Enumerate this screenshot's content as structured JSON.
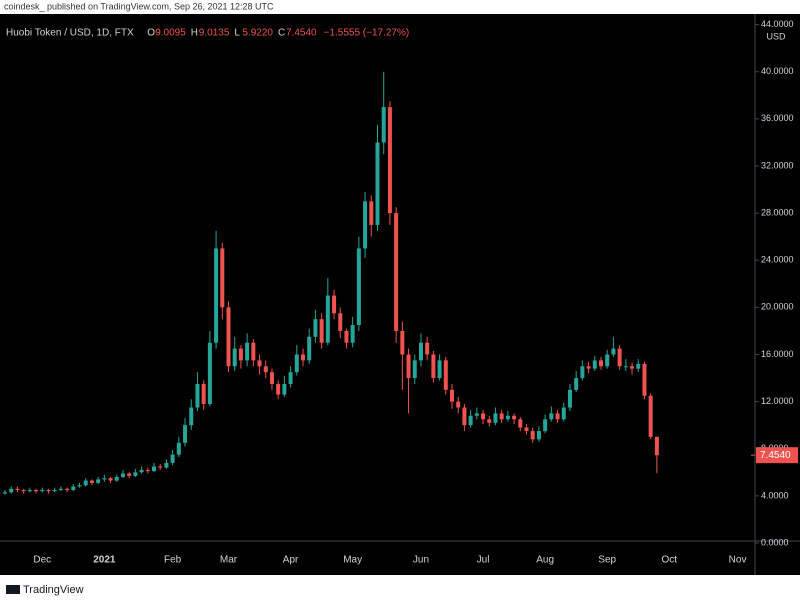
{
  "attribution": "coindesk_ published on TradingView.com, Sep 26, 2021 12:28 UTC",
  "footer": "TradingView",
  "chart_data": {
    "type": "candlestick",
    "symbol": "Huobi Token / USD, 1D, FTX",
    "ohlc_header": [
      {
        "key": "O",
        "value": "9.0095"
      },
      {
        "key": "H",
        "value": "9.0135"
      },
      {
        "key": "L",
        "value": "5.9220"
      },
      {
        "key": "C",
        "value": "7.4540"
      }
    ],
    "change": "−1.5555 (−17.27%)",
    "axis_unit": "USD",
    "up_color": "#26a69a",
    "down_color": "#ef5350",
    "grid": false,
    "categories": [
      null,
      null,
      null,
      null,
      null,
      null,
      "Dec",
      null,
      null,
      null,
      null,
      null,
      null,
      null,
      null,
      null,
      "2021",
      null,
      null,
      null,
      null,
      null,
      null,
      null,
      null,
      null,
      null,
      "Feb",
      null,
      null,
      null,
      null,
      null,
      null,
      null,
      null,
      "Mar",
      null,
      null,
      null,
      null,
      null,
      null,
      null,
      null,
      null,
      "Apr",
      null,
      null,
      null,
      null,
      null,
      null,
      null,
      null,
      null,
      "May",
      null,
      null,
      null,
      null,
      null,
      null,
      null,
      null,
      null,
      null,
      "Jun",
      null,
      null,
      null,
      null,
      null,
      null,
      null,
      null,
      null,
      "Jul",
      null,
      null,
      null,
      null,
      null,
      null,
      null,
      null,
      null,
      "Aug",
      null,
      null,
      null,
      null,
      null,
      null,
      null,
      null,
      null,
      "Sep",
      null,
      null,
      null,
      null,
      null,
      null,
      null,
      null,
      null,
      "Oct",
      null,
      null,
      null,
      null,
      null,
      null,
      null,
      null,
      null,
      null,
      "Nov",
      null,
      null
    ],
    "open": [
      4.2,
      4.3,
      4.6,
      4.5,
      4.4,
      4.5,
      4.4,
      4.5,
      4.4,
      4.5,
      4.6,
      4.5,
      4.8,
      4.9,
      5.3,
      5.1,
      5.4,
      5.5,
      5.3,
      5.6,
      5.9,
      5.7,
      6.0,
      6.2,
      6.1,
      6.5,
      6.4,
      6.8,
      7.5,
      8.5,
      10.0,
      11.5,
      13.5,
      11.8,
      17.0,
      25.0,
      20.0,
      15.0,
      16.5,
      15.5,
      17.0,
      15.5,
      15.0,
      14.5,
      13.5,
      12.6,
      13.5,
      14.5,
      16.0,
      15.5,
      17.5,
      19.0,
      17.0,
      21.0,
      19.5,
      18.0,
      17.0,
      18.5,
      25.0,
      29.0,
      27.0,
      34.0,
      37.0,
      28.0,
      18.0,
      16.0,
      14.0,
      15.5,
      17.0,
      16.0,
      14.0,
      15.5,
      13.0,
      12.0,
      11.5,
      10.0,
      10.8,
      11.0,
      10.5,
      10.2,
      11.0,
      10.5,
      10.8,
      10.5,
      9.8,
      9.5,
      8.8,
      9.5,
      10.5,
      11.0,
      10.5,
      11.5,
      13.0,
      14.0,
      15.0,
      14.8,
      15.5,
      15.0,
      16.0,
      16.5,
      15.0,
      15.0,
      14.8,
      15.2,
      12.5,
      9.0095,
      null,
      null,
      null,
      null,
      null,
      null,
      null,
      null,
      null,
      null,
      null,
      null,
      null,
      null,
      null
    ],
    "high": [
      4.5,
      4.8,
      4.8,
      4.6,
      4.7,
      4.6,
      4.7,
      4.6,
      4.7,
      4.8,
      4.7,
      5.0,
      5.1,
      5.5,
      5.4,
      5.6,
      5.8,
      5.6,
      5.8,
      6.2,
      6.0,
      6.3,
      6.5,
      6.4,
      6.8,
      6.7,
      7.1,
      7.9,
      9.0,
      10.6,
      12.2,
      14.5,
      13.8,
      18.0,
      26.5,
      25.5,
      20.5,
      17.5,
      16.8,
      17.8,
      17.3,
      16.0,
      15.5,
      14.8,
      13.8,
      14.2,
      15.0,
      16.8,
      16.5,
      18.2,
      19.8,
      19.5,
      22.5,
      21.5,
      20.0,
      18.2,
      19.2,
      26.0,
      29.8,
      29.5,
      35.5,
      40.0,
      37.5,
      28.5,
      18.8,
      16.5,
      16.0,
      17.8,
      17.5,
      16.3,
      16.0,
      15.8,
      13.5,
      12.4,
      11.8,
      11.3,
      11.5,
      11.3,
      10.8,
      11.5,
      11.3,
      11.2,
      11.0,
      10.7,
      10.1,
      9.8,
      9.9,
      10.9,
      11.6,
      11.3,
      11.9,
      13.5,
      14.6,
      15.5,
      15.4,
      15.9,
      15.8,
      16.4,
      17.5,
      16.8,
      15.6,
      15.3,
      15.6,
      15.4,
      12.7,
      9.0135,
      null,
      null,
      null,
      null,
      null,
      null,
      null,
      null,
      null,
      null,
      null,
      null,
      null,
      null,
      null
    ],
    "low": [
      4.1,
      4.2,
      4.3,
      4.2,
      4.3,
      4.2,
      4.3,
      4.2,
      4.3,
      4.4,
      4.3,
      4.4,
      4.7,
      4.8,
      4.9,
      5.0,
      5.2,
      5.1,
      5.2,
      5.5,
      5.5,
      5.6,
      5.9,
      5.9,
      6.0,
      6.2,
      6.3,
      6.6,
      7.3,
      8.2,
      9.6,
      11.2,
      11.3,
      11.6,
      16.5,
      19.0,
      14.5,
      14.6,
      14.8,
      15.0,
      15.0,
      14.3,
      14.0,
      13.0,
      12.2,
      12.4,
      13.2,
      14.2,
      15.0,
      15.2,
      17.0,
      16.5,
      16.8,
      19.0,
      17.4,
      16.5,
      16.6,
      18.0,
      24.2,
      26.0,
      26.5,
      33.0,
      27.0,
      17.0,
      13.0,
      11.0,
      13.5,
      15.0,
      15.5,
      13.6,
      13.8,
      12.6,
      11.4,
      11.0,
      9.5,
      9.8,
      10.5,
      10.1,
      9.9,
      10.0,
      10.2,
      10.3,
      10.1,
      9.5,
      9.2,
      8.5,
      8.6,
      9.3,
      10.3,
      10.2,
      10.3,
      11.2,
      12.8,
      13.8,
      14.4,
      14.6,
      14.7,
      14.8,
      15.8,
      14.7,
      14.6,
      14.3,
      14.5,
      12.2,
      8.8,
      5.922,
      null,
      null,
      null,
      null,
      null,
      null,
      null,
      null,
      null,
      null,
      null,
      null,
      null,
      null,
      null
    ],
    "close": [
      4.3,
      4.6,
      4.5,
      4.4,
      4.5,
      4.4,
      4.5,
      4.4,
      4.5,
      4.6,
      4.5,
      4.8,
      4.9,
      5.3,
      5.1,
      5.4,
      5.5,
      5.3,
      5.6,
      5.9,
      5.7,
      6.0,
      6.2,
      6.1,
      6.5,
      6.4,
      6.8,
      7.5,
      8.5,
      10.0,
      11.5,
      13.5,
      11.8,
      17.0,
      25.0,
      20.0,
      15.0,
      16.5,
      15.5,
      17.0,
      15.5,
      15.0,
      14.5,
      13.5,
      12.6,
      13.5,
      14.5,
      16.0,
      15.5,
      17.5,
      19.0,
      17.0,
      21.0,
      19.5,
      18.0,
      17.0,
      18.5,
      25.0,
      29.0,
      27.0,
      34.0,
      37.0,
      28.0,
      18.0,
      16.0,
      14.0,
      15.5,
      17.0,
      16.0,
      14.0,
      15.5,
      13.0,
      12.0,
      11.5,
      10.0,
      10.8,
      11.0,
      10.5,
      10.2,
      11.0,
      10.5,
      10.8,
      10.5,
      9.8,
      9.5,
      8.8,
      9.5,
      10.5,
      11.0,
      10.5,
      11.5,
      13.0,
      14.0,
      15.0,
      14.8,
      15.5,
      15.0,
      16.0,
      16.5,
      15.0,
      15.0,
      14.8,
      15.2,
      12.5,
      9.0095,
      7.454,
      null,
      null,
      null,
      null,
      null,
      null,
      null,
      null,
      null,
      null,
      null,
      null,
      null,
      null,
      null
    ],
    "last_price": {
      "value": 7.454,
      "label": "7.4540"
    },
    "ylim": [
      0.17,
      44.9
    ],
    "yticks": [
      {
        "value": 0,
        "label": "0.0000"
      },
      {
        "value": 4,
        "label": "4.0000"
      },
      {
        "value": 8,
        "label": "8.0000"
      },
      {
        "value": 12,
        "label": "12.0000"
      },
      {
        "value": 16,
        "label": "16.0000"
      },
      {
        "value": 20,
        "label": "20.0000"
      },
      {
        "value": 24,
        "label": "24.0000"
      },
      {
        "value": 28,
        "label": "28.0000"
      },
      {
        "value": 32,
        "label": "32.0000"
      },
      {
        "value": 36,
        "label": "36.0000"
      },
      {
        "value": 40,
        "label": "40.0000"
      },
      {
        "value": 44,
        "label": "44.0000"
      }
    ]
  }
}
